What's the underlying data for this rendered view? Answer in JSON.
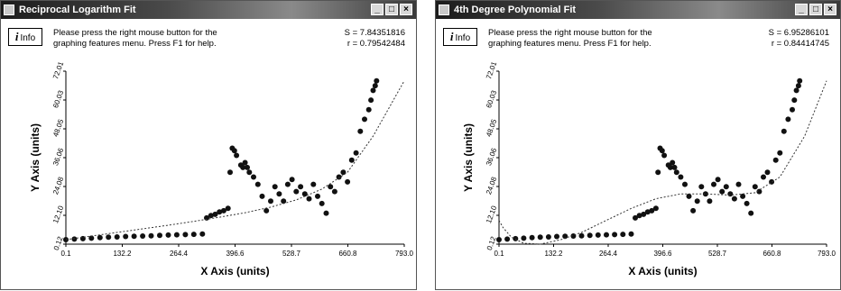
{
  "windows": [
    {
      "title": "Reciprocal Logarithm Fit",
      "info_label": "Info",
      "help_lines": [
        "Please press the right mouse button for the",
        "graphing features menu.  Press F1 for help."
      ],
      "stats": [
        "S = 7.84351816",
        "r = 0.79542484"
      ]
    },
    {
      "title": "4th Degree Polynomial Fit",
      "info_label": "Info",
      "help_lines": [
        "Please press the right mouse button for the",
        "graphing features menu.  Press F1 for help."
      ],
      "stats": [
        "S = 6.95286101",
        "r = 0.84414745"
      ]
    }
  ],
  "chart_data": [
    {
      "type": "scatter",
      "title": "Reciprocal Logarithm Fit",
      "xlabel": "X Axis (units)",
      "ylabel": "Y Axis (units)",
      "xlim": [
        0.1,
        793.0
      ],
      "ylim": [
        0.12,
        72.01
      ],
      "x_ticks": [
        "0.1",
        "132.2",
        "264.4",
        "396.6",
        "528.7",
        "660.8",
        "793.0"
      ],
      "y_ticks": [
        "0.12",
        "12.10",
        "24.08",
        "36.06",
        "48.05",
        "60.03",
        "72.01"
      ],
      "series": [
        {
          "kind": "points",
          "x": [
            0.1,
            20,
            40,
            60,
            80,
            100,
            120,
            140,
            160,
            180,
            200,
            220,
            240,
            260,
            280,
            300,
            320,
            330,
            340,
            350,
            360,
            370,
            380,
            385,
            390,
            395,
            400,
            410,
            415,
            420,
            425,
            430,
            440,
            450,
            460,
            470,
            480,
            490,
            500,
            510,
            520,
            530,
            540,
            550,
            560,
            570,
            580,
            590,
            600,
            610,
            620,
            630,
            640,
            650,
            660,
            670,
            680,
            690,
            700,
            710,
            715,
            720,
            725,
            728
          ],
          "y": [
            2,
            2.2,
            2.4,
            2.6,
            2.8,
            3,
            3.1,
            3.3,
            3.4,
            3.5,
            3.6,
            3.8,
            3.9,
            4,
            4.1,
            4.2,
            4.3,
            11,
            12,
            12.5,
            13.5,
            14,
            15,
            30,
            40,
            39,
            37,
            33,
            32,
            34,
            32,
            30,
            28,
            25,
            20,
            14,
            18,
            24,
            21,
            18,
            25,
            27,
            22,
            24,
            21,
            19,
            25,
            20,
            17,
            13,
            24,
            22,
            28,
            30,
            26,
            35,
            38,
            47,
            52,
            56,
            60,
            64,
            66,
            68
          ]
        },
        {
          "kind": "fit",
          "x": [
            0.1,
            60,
            120,
            180,
            240,
            300,
            360,
            420,
            480,
            540,
            600,
            660,
            720,
            793
          ],
          "y": [
            2,
            3.5,
            5,
            6.5,
            8,
            9.6,
            11.3,
            13.2,
            15.5,
            18.5,
            23,
            30,
            45,
            68
          ]
        }
      ]
    },
    {
      "type": "scatter",
      "title": "4th Degree Polynomial Fit",
      "xlabel": "X Axis (units)",
      "ylabel": "Y Axis (units)",
      "xlim": [
        0.1,
        793.0
      ],
      "ylim": [
        0.12,
        72.01
      ],
      "x_ticks": [
        "0.1",
        "132.2",
        "264.4",
        "396.6",
        "528.7",
        "660.8",
        "793.0"
      ],
      "y_ticks": [
        "0.12",
        "12.10",
        "24.08",
        "36.06",
        "48.05",
        "60.03",
        "72.01"
      ],
      "series": [
        {
          "kind": "points",
          "x": [
            0.1,
            20,
            40,
            60,
            80,
            100,
            120,
            140,
            160,
            180,
            200,
            220,
            240,
            260,
            280,
            300,
            320,
            330,
            340,
            350,
            360,
            370,
            380,
            385,
            390,
            395,
            400,
            410,
            415,
            420,
            425,
            430,
            440,
            450,
            460,
            470,
            480,
            490,
            500,
            510,
            520,
            530,
            540,
            550,
            560,
            570,
            580,
            590,
            600,
            610,
            620,
            630,
            640,
            650,
            660,
            670,
            680,
            690,
            700,
            710,
            715,
            720,
            725,
            728
          ],
          "y": [
            2,
            2.2,
            2.4,
            2.6,
            2.8,
            3,
            3.1,
            3.3,
            3.4,
            3.5,
            3.6,
            3.8,
            3.9,
            4,
            4.1,
            4.2,
            4.3,
            11,
            12,
            12.5,
            13.5,
            14,
            15,
            30,
            40,
            39,
            37,
            33,
            32,
            34,
            32,
            30,
            28,
            25,
            20,
            14,
            18,
            24,
            21,
            18,
            25,
            27,
            22,
            24,
            21,
            19,
            25,
            20,
            17,
            13,
            24,
            22,
            28,
            30,
            26,
            35,
            38,
            47,
            52,
            56,
            60,
            64,
            66,
            68
          ]
        },
        {
          "kind": "fit",
          "x": [
            0.1,
            10,
            30,
            60,
            100,
            150,
            200,
            260,
            320,
            380,
            440,
            500,
            560,
            620,
            680,
            740,
            793
          ],
          "y": [
            10,
            7,
            3,
            0.5,
            0.12,
            2,
            5,
            10,
            15,
            19,
            21,
            21,
            20.5,
            21.5,
            28,
            45,
            68
          ]
        }
      ]
    }
  ]
}
